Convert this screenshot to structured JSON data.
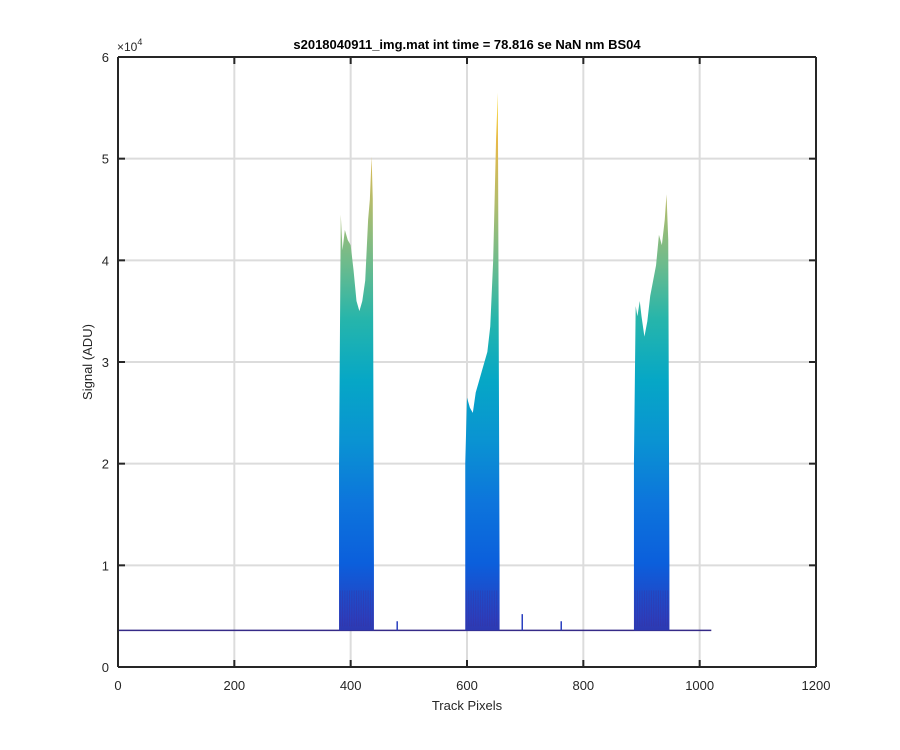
{
  "chart_data": {
    "type": "area",
    "title": "s2018040911_img.mat int time = 78.816 se  NaN nm BS04",
    "xlabel": "Track Pixels",
    "ylabel": "Signal (ADU)",
    "xlim": [
      0,
      1200
    ],
    "ylim": [
      0,
      60000
    ],
    "xticks": [
      0,
      200,
      400,
      600,
      800,
      1000,
      1200
    ],
    "yticks": [
      0,
      10000,
      20000,
      30000,
      40000,
      50000,
      60000
    ],
    "ytick_labels": [
      "0",
      "1",
      "2",
      "3",
      "4",
      "5",
      "6"
    ],
    "ytick_exponent": "×10",
    "ytick_exponent_power": "4",
    "grid": true,
    "colormap": "parula",
    "baseline_signal": 3600,
    "baseline_x_range": [
      0,
      1020
    ],
    "series": [
      {
        "x": [
          380,
          383,
          386,
          390,
          395,
          400,
          405,
          410,
          415,
          420,
          425,
          430,
          433,
          436,
          438,
          440
        ],
        "y": [
          20000,
          44500,
          41000,
          43000,
          42000,
          41500,
          39000,
          36000,
          35000,
          36000,
          38000,
          44000,
          46000,
          50200,
          46000,
          10000
        ]
      },
      {
        "x": [
          597,
          600,
          605,
          610,
          615,
          620,
          625,
          630,
          635,
          640,
          645,
          650,
          653,
          656
        ],
        "y": [
          20000,
          26500,
          25500,
          25000,
          27000,
          28000,
          29000,
          30000,
          31000,
          33500,
          40000,
          52000,
          56500,
          10000
        ]
      },
      {
        "x": [
          887,
          890,
          893,
          897,
          900,
          905,
          910,
          915,
          920,
          925,
          930,
          935,
          940,
          943,
          946,
          948
        ],
        "y": [
          20000,
          35500,
          34500,
          36000,
          34500,
          32500,
          34000,
          36500,
          38000,
          39500,
          42500,
          41500,
          44000,
          46500,
          42000,
          10000
        ]
      }
    ],
    "minor_spikes": [
      {
        "x": 480,
        "y": 4500
      },
      {
        "x": 695,
        "y": 5200
      },
      {
        "x": 762,
        "y": 4500
      }
    ]
  }
}
